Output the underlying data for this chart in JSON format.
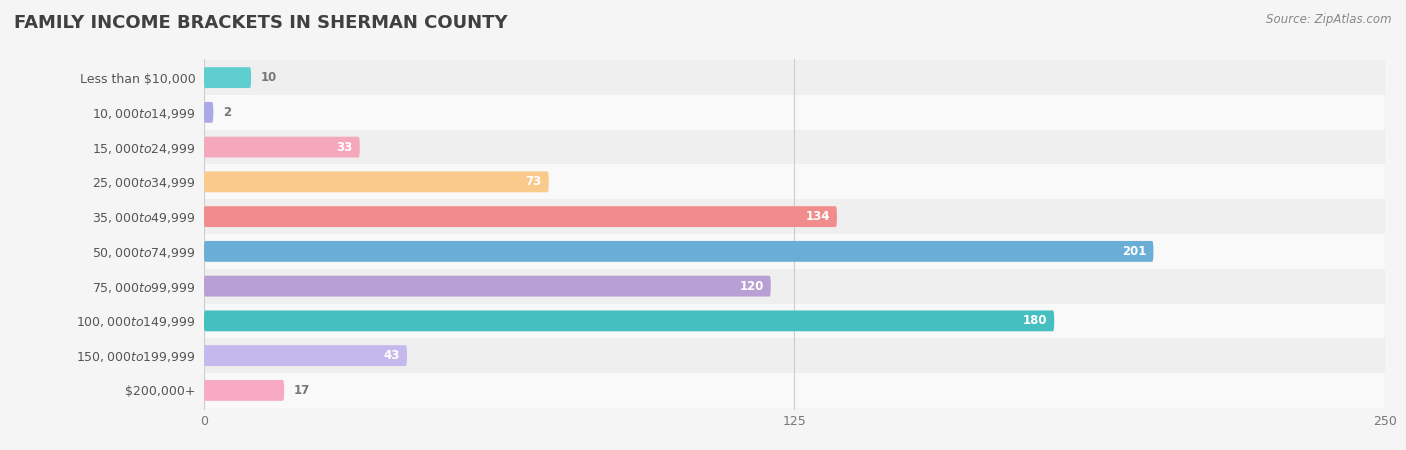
{
  "title": "FAMILY INCOME BRACKETS IN SHERMAN COUNTY",
  "source": "Source: ZipAtlas.com",
  "categories": [
    "Less than $10,000",
    "$10,000 to $14,999",
    "$15,000 to $24,999",
    "$25,000 to $34,999",
    "$35,000 to $49,999",
    "$50,000 to $74,999",
    "$75,000 to $99,999",
    "$100,000 to $149,999",
    "$150,000 to $199,999",
    "$200,000+"
  ],
  "values": [
    10,
    2,
    33,
    73,
    134,
    201,
    120,
    180,
    43,
    17
  ],
  "bar_colors": [
    "#5ecece",
    "#aca8e8",
    "#f5a8bc",
    "#f9ca8c",
    "#f28c8c",
    "#6aadd6",
    "#b89fd4",
    "#45bfbf",
    "#c4b8ec",
    "#f8aac4"
  ],
  "bg_color": "#f5f5f5",
  "row_bg_even": "#efefef",
  "row_bg_odd": "#f9f9f9",
  "xlim": [
    0,
    250
  ],
  "xticks": [
    0,
    125,
    250
  ],
  "title_color": "#404040",
  "label_color": "#555555",
  "value_color_inside": "#ffffff",
  "value_color_outside": "#777777",
  "bar_height": 0.6,
  "title_fontsize": 13,
  "label_fontsize": 9.0,
  "value_fontsize": 8.5,
  "tick_fontsize": 9,
  "source_fontsize": 8.5
}
